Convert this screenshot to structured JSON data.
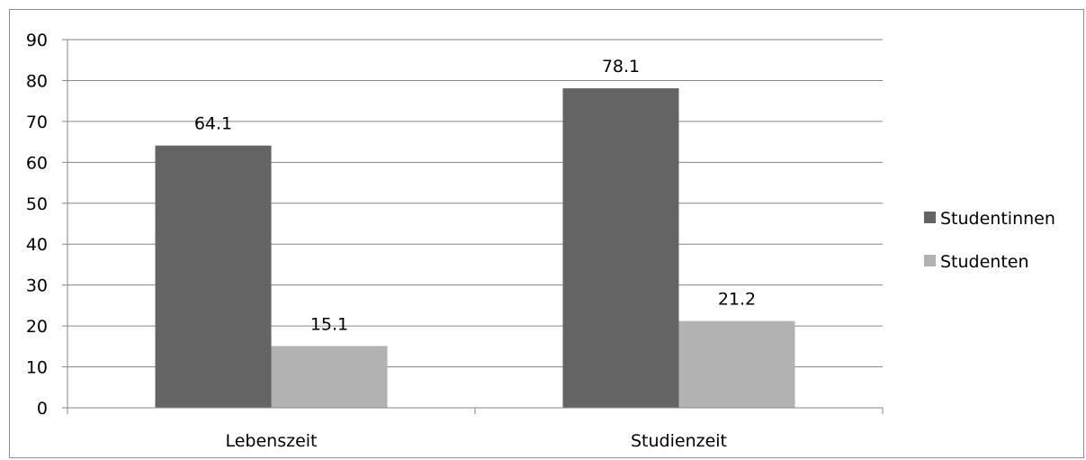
{
  "chart_data": {
    "type": "bar",
    "categories": [
      "Lebenszeit",
      "Studienzeit"
    ],
    "series": [
      {
        "name": "Studentinnen",
        "values": [
          64.1,
          78.1
        ],
        "color": "#646464"
      },
      {
        "name": "Studenten",
        "values": [
          15.1,
          21.2
        ],
        "color": "#b2b2b2"
      }
    ],
    "ylim": [
      0,
      90
    ],
    "yticks": [
      0,
      10,
      20,
      30,
      40,
      50,
      60,
      70,
      80,
      90
    ],
    "grid": true,
    "legend": "right",
    "data_labels": true
  }
}
